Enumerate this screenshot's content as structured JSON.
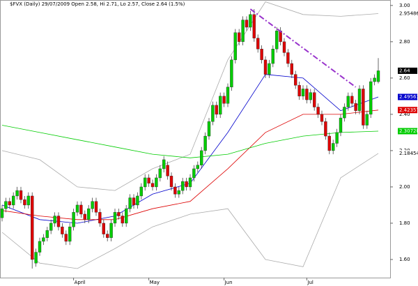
{
  "chart_data": {
    "type": "candlestick",
    "title": "$FVX (Daily) 29/07/2009 Open 2.58, Hi 2.71, Lo 2.57, Close 2.64 (1.5%)",
    "categories": [
      null,
      null,
      null,
      null,
      null,
      null,
      null,
      null,
      null,
      null,
      null,
      null,
      null,
      null,
      null,
      null,
      null,
      null,
      null,
      "April",
      null,
      null,
      null,
      null,
      null,
      null,
      null,
      null,
      null,
      null,
      null,
      null,
      null,
      null,
      null,
      null,
      null,
      null,
      null,
      "May",
      null,
      null,
      null,
      null,
      null,
      null,
      null,
      null,
      null,
      null,
      null,
      null,
      null,
      null,
      null,
      null,
      null,
      null,
      null,
      "Jun",
      null,
      null,
      null,
      null,
      null,
      null,
      null,
      null,
      null,
      null,
      null,
      null,
      null,
      null,
      null,
      null,
      null,
      null,
      null,
      null,
      null,
      "Jul",
      null,
      null,
      null,
      null,
      null,
      null,
      null,
      null,
      null,
      null,
      null,
      null,
      null,
      null,
      null,
      null,
      null,
      null,
      null
    ],
    "open": [
      1.83,
      1.88,
      1.92,
      1.9,
      1.95,
      1.98,
      1.93,
      1.9,
      1.95,
      1.58,
      1.64,
      1.7,
      1.72,
      1.76,
      1.8,
      1.84,
      1.78,
      1.74,
      1.7,
      1.78,
      1.86,
      1.9,
      1.85,
      1.82,
      1.88,
      1.92,
      1.86,
      1.8,
      1.74,
      1.72,
      1.8,
      1.86,
      1.84,
      1.8,
      1.88,
      1.94,
      1.9,
      1.95,
      2.0,
      2.05,
      2.02,
      2.0,
      2.05,
      2.1,
      2.12,
      2.06,
      2.0,
      1.96,
      1.98,
      2.03,
      2.0,
      2.05,
      2.1,
      2.12,
      2.2,
      2.28,
      2.36,
      2.45,
      2.4,
      2.5,
      2.46,
      2.55,
      2.7,
      2.85,
      2.8,
      2.92,
      2.88,
      2.95,
      2.82,
      2.76,
      2.7,
      2.62,
      2.68,
      2.76,
      2.86,
      2.8,
      2.74,
      2.68,
      2.62,
      2.56,
      2.5,
      2.54,
      2.48,
      2.52,
      2.44,
      2.4,
      2.36,
      2.28,
      2.2,
      2.24,
      2.3,
      2.38,
      2.44,
      2.5,
      2.46,
      2.42,
      2.54,
      2.34,
      2.4,
      2.58,
      2.58
    ],
    "high": [
      1.9,
      1.94,
      1.94,
      1.97,
      2.0,
      2.0,
      1.95,
      1.97,
      1.97,
      1.66,
      1.72,
      1.74,
      1.78,
      1.82,
      1.86,
      1.86,
      1.8,
      1.76,
      1.8,
      1.88,
      1.92,
      1.92,
      1.87,
      1.9,
      1.94,
      1.94,
      1.88,
      1.82,
      1.76,
      1.82,
      1.88,
      1.88,
      1.86,
      1.9,
      1.96,
      1.96,
      1.97,
      2.02,
      2.07,
      2.07,
      2.04,
      2.07,
      2.12,
      2.17,
      2.14,
      2.08,
      2.02,
      2.0,
      2.05,
      2.05,
      2.07,
      2.12,
      2.14,
      2.22,
      2.3,
      2.38,
      2.47,
      2.47,
      2.52,
      2.52,
      2.57,
      2.72,
      2.87,
      2.87,
      2.94,
      2.94,
      2.97,
      2.98,
      2.84,
      2.78,
      2.72,
      2.7,
      2.78,
      2.88,
      2.88,
      2.82,
      2.76,
      2.7,
      2.64,
      2.58,
      2.56,
      2.56,
      2.54,
      2.54,
      2.46,
      2.42,
      2.38,
      2.3,
      2.26,
      2.32,
      2.4,
      2.46,
      2.52,
      2.52,
      2.48,
      2.56,
      2.56,
      2.42,
      2.6,
      2.62,
      2.71
    ],
    "low": [
      1.81,
      1.86,
      1.88,
      1.88,
      1.93,
      1.91,
      1.88,
      1.88,
      1.55,
      1.56,
      1.62,
      1.68,
      1.7,
      1.74,
      1.78,
      1.76,
      1.72,
      1.68,
      1.68,
      1.76,
      1.84,
      1.83,
      1.8,
      1.8,
      1.86,
      1.84,
      1.78,
      1.72,
      1.7,
      1.7,
      1.78,
      1.82,
      1.78,
      1.78,
      1.86,
      1.88,
      1.88,
      1.93,
      1.98,
      2.0,
      1.98,
      1.98,
      2.03,
      2.08,
      2.04,
      1.98,
      1.94,
      1.94,
      1.96,
      1.98,
      1.98,
      2.03,
      2.08,
      2.1,
      2.18,
      2.26,
      2.34,
      2.38,
      2.38,
      2.44,
      2.44,
      2.53,
      2.68,
      2.78,
      2.78,
      2.86,
      2.86,
      2.8,
      2.74,
      2.68,
      2.6,
      2.6,
      2.66,
      2.74,
      2.78,
      2.72,
      2.66,
      2.6,
      2.54,
      2.48,
      2.48,
      2.46,
      2.46,
      2.42,
      2.38,
      2.34,
      2.26,
      2.18,
      2.18,
      2.22,
      2.28,
      2.36,
      2.42,
      2.44,
      2.4,
      2.4,
      2.32,
      2.32,
      2.38,
      2.56,
      2.57
    ],
    "close": [
      1.88,
      1.92,
      1.9,
      1.95,
      1.98,
      1.93,
      1.9,
      1.95,
      1.6,
      1.64,
      1.7,
      1.72,
      1.76,
      1.8,
      1.84,
      1.78,
      1.74,
      1.7,
      1.78,
      1.86,
      1.9,
      1.85,
      1.82,
      1.88,
      1.92,
      1.86,
      1.8,
      1.74,
      1.72,
      1.8,
      1.86,
      1.84,
      1.8,
      1.88,
      1.94,
      1.9,
      1.95,
      2.0,
      2.05,
      2.02,
      2.0,
      2.05,
      2.1,
      2.15,
      2.06,
      2.0,
      1.96,
      1.98,
      2.03,
      2.0,
      2.05,
      2.1,
      2.12,
      2.2,
      2.28,
      2.36,
      2.45,
      2.4,
      2.5,
      2.46,
      2.55,
      2.7,
      2.85,
      2.8,
      2.92,
      2.88,
      2.95,
      2.82,
      2.76,
      2.7,
      2.62,
      2.68,
      2.76,
      2.86,
      2.8,
      2.74,
      2.68,
      2.62,
      2.56,
      2.5,
      2.54,
      2.48,
      2.52,
      2.44,
      2.4,
      2.36,
      2.28,
      2.2,
      2.24,
      2.3,
      2.38,
      2.44,
      2.5,
      2.46,
      2.42,
      2.54,
      2.34,
      2.4,
      2.58,
      2.6,
      2.64
    ],
    "up_color": "#00cc00",
    "down_color": "#dd0000",
    "overlays": [
      {
        "color": "#aaaaaa",
        "x": [
          0,
          10,
          20,
          30,
          40,
          50,
          60,
          70,
          80,
          90,
          100
        ],
        "values": [
          2.2,
          2.15,
          2.0,
          1.98,
          2.1,
          2.18,
          2.7,
          3.02,
          2.95,
          2.94,
          2.95486
        ]
      },
      {
        "color": "#aaaaaa",
        "x": [
          0,
          10,
          20,
          30,
          40,
          50,
          60,
          70,
          80,
          90,
          100
        ],
        "values": [
          1.75,
          1.58,
          1.55,
          1.66,
          1.78,
          1.85,
          1.88,
          1.6,
          1.56,
          2.05,
          2.18454
        ]
      },
      {
        "color": "#0000cc",
        "x": [
          0,
          10,
          20,
          30,
          40,
          50,
          60,
          70,
          80,
          90,
          100
        ],
        "values": [
          1.9,
          1.82,
          1.8,
          1.84,
          1.96,
          2.02,
          2.3,
          2.62,
          2.6,
          2.42,
          2.49563
        ]
      },
      {
        "color": "#dd0000",
        "x": [
          0,
          10,
          20,
          30,
          40,
          50,
          60,
          70,
          80,
          90,
          100
        ],
        "values": [
          1.87,
          1.84,
          1.82,
          1.82,
          1.88,
          1.92,
          2.1,
          2.3,
          2.4,
          2.4,
          2.42357
        ]
      },
      {
        "color": "#00cc00",
        "x": [
          0,
          10,
          20,
          30,
          40,
          50,
          60,
          70,
          80,
          90,
          100
        ],
        "values": [
          2.34,
          2.3,
          2.26,
          2.22,
          2.18,
          2.16,
          2.18,
          2.24,
          2.28,
          2.3,
          2.30728
        ]
      }
    ],
    "trendline": {
      "color": "#9933cc",
      "x": [
        66,
        94
      ],
      "values": [
        2.98,
        2.55
      ]
    },
    "last_value_labels": [
      {
        "label": "2.95486",
        "value": 2.95486,
        "color": "#ffffff"
      },
      {
        "label": "2.64",
        "value": 2.64,
        "color": "#000000"
      },
      {
        "label": "2.49563",
        "value": 2.49563,
        "color": "#0000cc"
      },
      {
        "label": "2.42357",
        "value": 2.42357,
        "color": "#dd0000"
      },
      {
        "label": "2.30728",
        "value": 2.30728,
        "color": "#00cc00"
      },
      {
        "label": "2.18454",
        "value": 2.18454,
        "color": "#ffffff"
      }
    ],
    "ylim": [
      1.5,
      3.03
    ],
    "yticks": [
      {
        "value": 3.0,
        "label": "3.00"
      },
      {
        "value": 2.8,
        "label": "2.80"
      },
      {
        "value": 2.6,
        "label": "2.60"
      },
      {
        "value": 2.4,
        "label": "2.40"
      },
      {
        "value": 2.2,
        "label": "2.20"
      },
      {
        "value": 2.0,
        "label": "2.00"
      },
      {
        "value": 1.8,
        "label": "1.80"
      },
      {
        "value": 1.6,
        "label": "1.60"
      }
    ]
  }
}
